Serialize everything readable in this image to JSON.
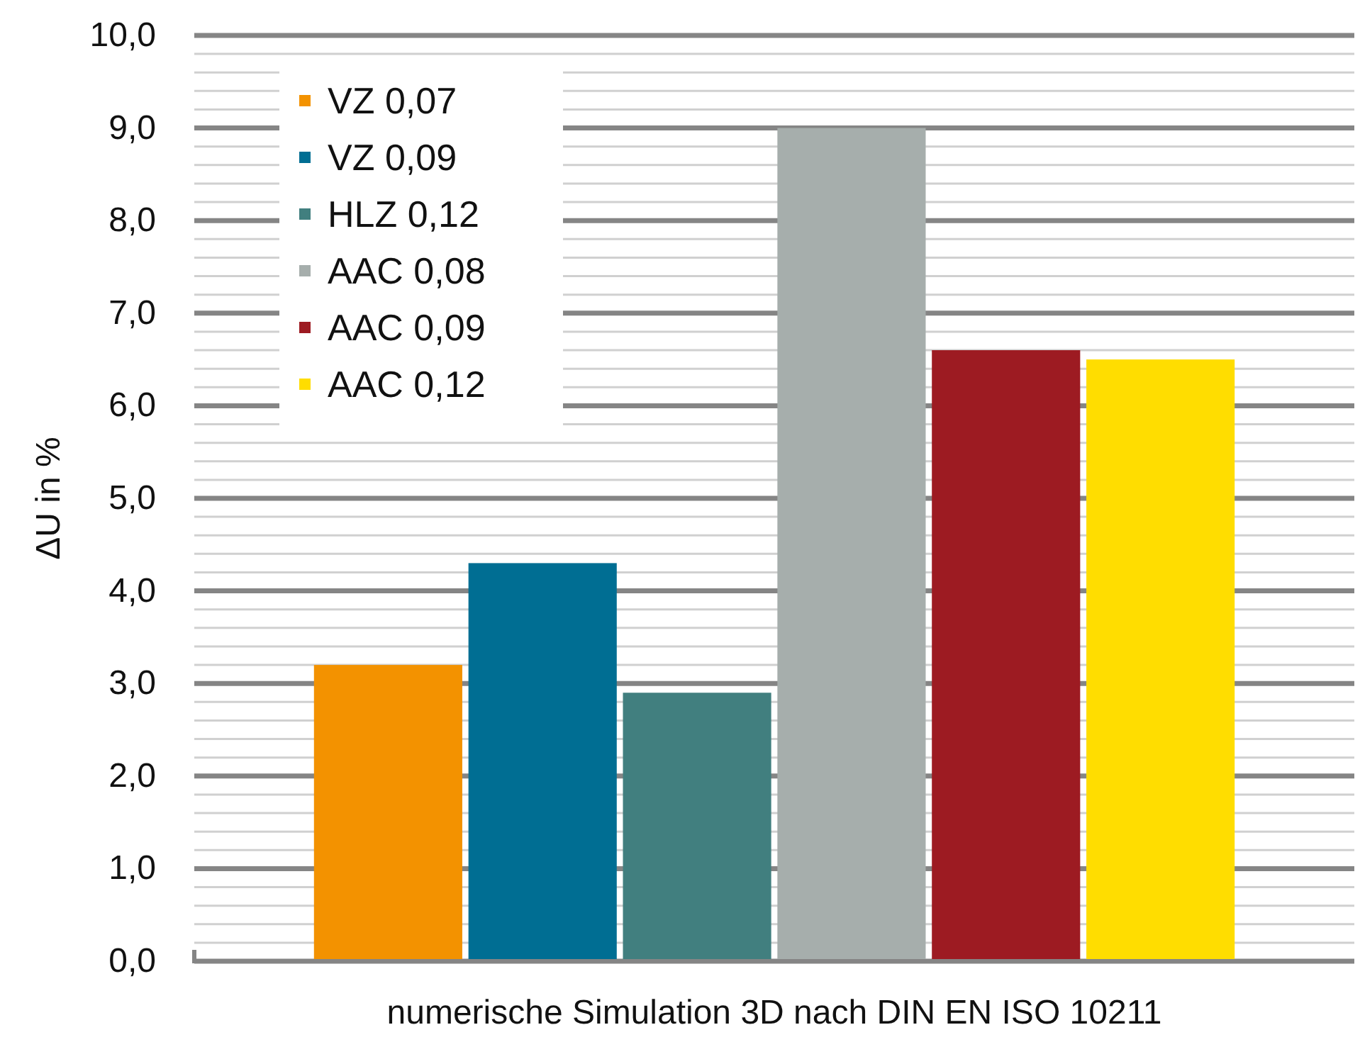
{
  "chart_data": {
    "type": "bar",
    "ylabel": "ΔU in %",
    "categories": [
      "numerische Simulation 3D nach DIN EN ISO 10211"
    ],
    "series": [
      {
        "name": "VZ 0,07",
        "color": "#f39200",
        "values": [
          3.2
        ]
      },
      {
        "name": "VZ 0,09",
        "color": "#006e93",
        "values": [
          4.3
        ]
      },
      {
        "name": "HLZ 0,12",
        "color": "#417f7f",
        "values": [
          2.9
        ]
      },
      {
        "name": "AAC 0,08",
        "color": "#a6aeac",
        "values": [
          9.0
        ]
      },
      {
        "name": "AAC 0,09",
        "color": "#9d1b22",
        "values": [
          6.6
        ]
      },
      {
        "name": "AAC 0,12",
        "color": "#ffdd00",
        "values": [
          6.5
        ]
      }
    ],
    "ylim": [
      0,
      10
    ],
    "yticks": [
      {
        "value": 0,
        "label": "0,0"
      },
      {
        "value": 0.2,
        "label": null
      },
      {
        "value": 0.4,
        "label": null
      },
      {
        "value": 0.6,
        "label": null
      },
      {
        "value": 0.8,
        "label": null
      },
      {
        "value": 1,
        "label": "1,0"
      },
      {
        "value": 1.2,
        "label": null
      },
      {
        "value": 1.4,
        "label": null
      },
      {
        "value": 1.6,
        "label": null
      },
      {
        "value": 1.8,
        "label": null
      },
      {
        "value": 2,
        "label": "2,0"
      },
      {
        "value": 2.2,
        "label": null
      },
      {
        "value": 2.4,
        "label": null
      },
      {
        "value": 2.6,
        "label": null
      },
      {
        "value": 2.8,
        "label": null
      },
      {
        "value": 3,
        "label": "3,0"
      },
      {
        "value": 3.2,
        "label": null
      },
      {
        "value": 3.4,
        "label": null
      },
      {
        "value": 3.6,
        "label": null
      },
      {
        "value": 3.8,
        "label": null
      },
      {
        "value": 4,
        "label": "4,0"
      },
      {
        "value": 4.2,
        "label": null
      },
      {
        "value": 4.4,
        "label": null
      },
      {
        "value": 4.6,
        "label": null
      },
      {
        "value": 4.8,
        "label": null
      },
      {
        "value": 5,
        "label": "5,0"
      },
      {
        "value": 5.2,
        "label": null
      },
      {
        "value": 5.4,
        "label": null
      },
      {
        "value": 5.6,
        "label": null
      },
      {
        "value": 5.8,
        "label": null
      },
      {
        "value": 6,
        "label": "6,0"
      },
      {
        "value": 6.2,
        "label": null
      },
      {
        "value": 6.4,
        "label": null
      },
      {
        "value": 6.6,
        "label": null
      },
      {
        "value": 6.8,
        "label": null
      },
      {
        "value": 7,
        "label": "7,0"
      },
      {
        "value": 7.2,
        "label": null
      },
      {
        "value": 7.4,
        "label": null
      },
      {
        "value": 7.6,
        "label": null
      },
      {
        "value": 7.8,
        "label": null
      },
      {
        "value": 8,
        "label": "8,0"
      },
      {
        "value": 8.2,
        "label": null
      },
      {
        "value": 8.4,
        "label": null
      },
      {
        "value": 8.6,
        "label": null
      },
      {
        "value": 8.8,
        "label": null
      },
      {
        "value": 9,
        "label": "9,0"
      },
      {
        "value": 9.2,
        "label": null
      },
      {
        "value": 9.4,
        "label": null
      },
      {
        "value": 9.6,
        "label": null
      },
      {
        "value": 9.8,
        "label": null
      },
      {
        "value": 10,
        "label": "10,0"
      }
    ],
    "grid": true,
    "legend": "top left"
  }
}
